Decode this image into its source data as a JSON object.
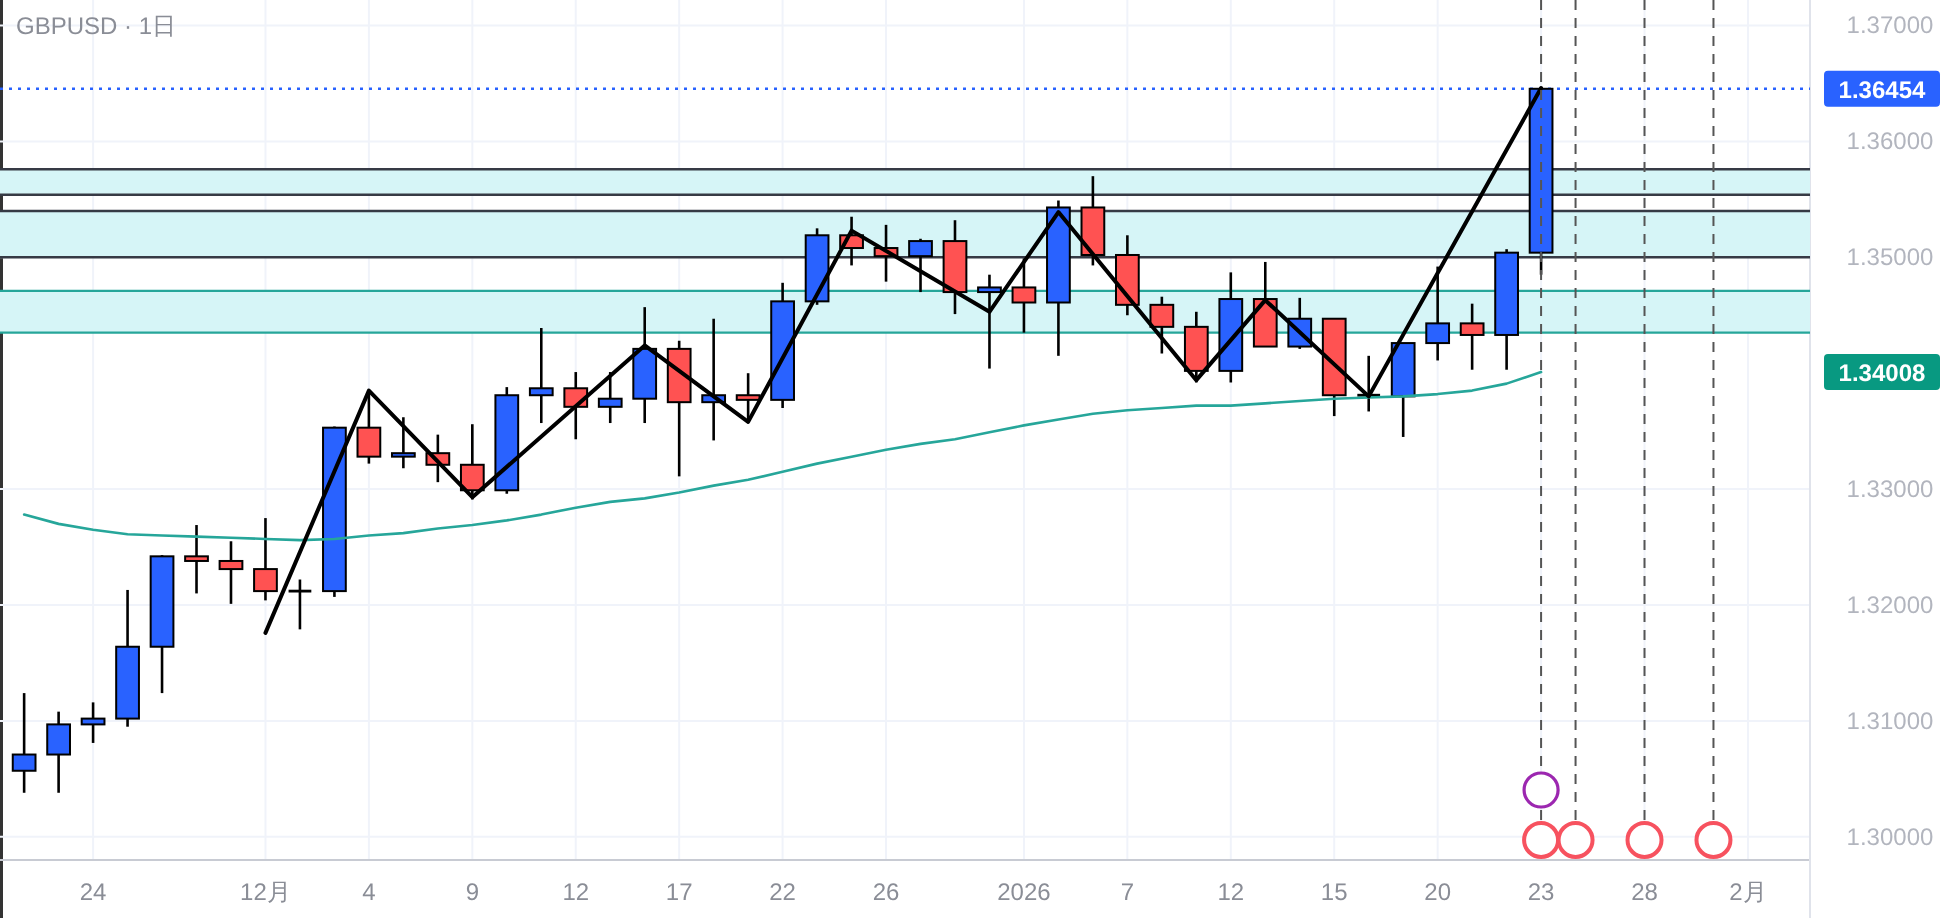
{
  "chart_data": {
    "type": "candlestick",
    "title": "GBPUSD · 1日",
    "categories": [
      null,
      null,
      "24",
      null,
      null,
      null,
      null,
      "12月",
      null,
      null,
      "4",
      null,
      null,
      "9",
      null,
      null,
      "12",
      null,
      null,
      "17",
      null,
      null,
      "22",
      null,
      null,
      "26",
      null,
      null,
      null,
      "2026",
      null,
      null,
      "7",
      null,
      null,
      "12",
      null,
      null,
      "15",
      null,
      null,
      "20",
      null,
      null,
      "23",
      null,
      null,
      "28",
      null,
      null,
      "2月"
    ],
    "ohlc": [
      [
        1.3057,
        1.3124,
        1.3038,
        1.3071
      ],
      [
        1.3071,
        1.3108,
        1.3038,
        1.3097
      ],
      [
        1.3097,
        1.3116,
        1.3081,
        1.3102
      ],
      [
        1.3102,
        1.3213,
        1.3095,
        1.3164
      ],
      [
        1.3164,
        1.3243,
        1.3124,
        1.3242
      ],
      [
        1.3242,
        1.3269,
        1.321,
        1.3238
      ],
      [
        1.3238,
        1.3255,
        1.3201,
        1.3231
      ],
      [
        1.3231,
        1.3275,
        1.3204,
        1.3212
      ],
      [
        1.3212,
        1.3222,
        1.3179,
        1.3212
      ],
      [
        1.3212,
        1.3354,
        1.3207,
        1.3353
      ],
      [
        1.3353,
        1.3385,
        1.3322,
        1.3328
      ],
      [
        1.3328,
        1.3362,
        1.3318,
        1.3331
      ],
      [
        1.3331,
        1.3347,
        1.3306,
        1.3321
      ],
      [
        1.3321,
        1.3356,
        1.3291,
        1.3299
      ],
      [
        1.3299,
        1.3388,
        1.3296,
        1.3381
      ],
      [
        1.3381,
        1.3439,
        1.3357,
        1.3387
      ],
      [
        1.3387,
        1.3401,
        1.3343,
        1.3371
      ],
      [
        1.3371,
        1.3401,
        1.3357,
        1.3378
      ],
      [
        1.3378,
        1.3457,
        1.3357,
        1.3421
      ],
      [
        1.3421,
        1.3428,
        1.3311,
        1.3375
      ],
      [
        1.3375,
        1.3447,
        1.3342,
        1.3381
      ],
      [
        1.3381,
        1.34,
        1.3358,
        1.3377
      ],
      [
        1.3377,
        1.3478,
        1.337,
        1.3462
      ],
      [
        1.3462,
        1.3525,
        1.3459,
        1.3519
      ],
      [
        1.3519,
        1.3535,
        1.3493,
        1.3508
      ],
      [
        1.3508,
        1.3528,
        1.3479,
        1.3501
      ],
      [
        1.3501,
        1.3516,
        1.347,
        1.3514
      ],
      [
        1.3514,
        1.3532,
        1.3451,
        1.347
      ],
      [
        1.347,
        1.3485,
        1.3404,
        1.3474
      ],
      [
        1.3474,
        1.3499,
        1.3435,
        1.3461
      ],
      [
        1.3461,
        1.3549,
        1.3415,
        1.3543
      ],
      [
        1.3543,
        1.357,
        1.3493,
        1.3502
      ],
      [
        1.3502,
        1.3519,
        1.345,
        1.3459
      ],
      [
        1.3459,
        1.3466,
        1.3417,
        1.344
      ],
      [
        1.344,
        1.3453,
        1.3392,
        1.3402
      ],
      [
        1.3402,
        1.3487,
        1.3392,
        1.3464
      ],
      [
        1.3464,
        1.3496,
        1.3423,
        1.3423
      ],
      [
        1.3423,
        1.3465,
        1.3421,
        1.3447
      ],
      [
        1.3447,
        1.3447,
        1.3363,
        1.3381
      ],
      [
        1.3381,
        1.3415,
        1.3367,
        1.338
      ],
      [
        1.338,
        1.3426,
        1.3345,
        1.3426
      ],
      [
        1.3426,
        1.3492,
        1.3411,
        1.3443
      ],
      [
        1.3443,
        1.346,
        1.3403,
        1.3433
      ],
      [
        1.3433,
        1.3507,
        1.3403,
        1.3504
      ],
      [
        1.3504,
        1.36454,
        1.3485,
        1.36454
      ],
      null,
      null,
      null,
      null,
      null,
      null
    ],
    "colors": [
      "#2962ff",
      "#2962ff",
      "#2962ff",
      "#2962ff",
      "#2962ff",
      "#ff5252",
      "#ff5252",
      "#ff5252",
      "#000000",
      "#2962ff",
      "#ff5252",
      "#2962ff",
      "#ff5252",
      "#ff5252",
      "#2962ff",
      "#2962ff",
      "#ff5252",
      "#2962ff",
      "#2962ff",
      "#ff5252",
      "#2962ff",
      "#ff5252",
      "#2962ff",
      "#2962ff",
      "#ff5252",
      "#ff5252",
      "#2962ff",
      "#ff5252",
      "#2962ff",
      "#ff5252",
      "#2962ff",
      "#ff5252",
      "#ff5252",
      "#ff5252",
      "#ff5252",
      "#2962ff",
      "#ff5252",
      "#2962ff",
      "#ff5252",
      "#000000",
      "#2962ff",
      "#2962ff",
      "#ff5252",
      "#2962ff",
      "#2962ff",
      null,
      null,
      null,
      null,
      null,
      null
    ],
    "series": [
      {
        "type": "line",
        "color": "#26a69a",
        "values": [
          1.3278,
          1.327,
          1.3265,
          1.3261,
          1.326,
          1.3259,
          1.3258,
          1.3257,
          1.3256,
          1.3257,
          1.326,
          1.3262,
          1.3266,
          1.3269,
          1.3273,
          1.3278,
          1.3284,
          1.3289,
          1.3292,
          1.3297,
          1.3303,
          1.3308,
          1.3315,
          1.3322,
          1.3328,
          1.3334,
          1.3339,
          1.3343,
          1.3349,
          1.3355,
          1.336,
          1.3365,
          1.3368,
          1.337,
          1.3372,
          1.3372,
          1.3374,
          1.3376,
          1.3378,
          1.3379,
          1.338,
          1.3382,
          1.3385,
          1.3391,
          1.3401,
          null,
          null,
          null,
          null,
          null,
          null
        ]
      },
      {
        "type": "line",
        "color": "#000000",
        "values": [
          null,
          null,
          null,
          null,
          null,
          null,
          null,
          1.3176,
          null,
          null,
          1.3385,
          null,
          null,
          1.3293,
          null,
          null,
          null,
          null,
          1.3424,
          null,
          null,
          1.3358,
          null,
          null,
          1.3523,
          null,
          null,
          null,
          1.3453,
          null,
          1.3539,
          null,
          null,
          null,
          1.3394,
          null,
          1.3463,
          null,
          null,
          1.338,
          null,
          null,
          null,
          null,
          1.3646,
          null,
          null,
          null,
          null,
          null,
          null
        ]
      }
    ],
    "ylim": [
      1.298,
      1.3722
    ],
    "grid": true,
    "yticks": [
      {
        "value": 1.3,
        "label": "1.30000"
      },
      {
        "value": 1.31,
        "label": "1.31000"
      },
      {
        "value": 1.32,
        "label": "1.32000"
      },
      {
        "value": 1.33,
        "label": "1.33000"
      },
      {
        "value": 1.35,
        "label": "1.35000"
      },
      {
        "value": 1.36,
        "label": "1.36000"
      },
      {
        "value": 1.37,
        "label": "1.37000"
      }
    ],
    "bands": [
      {
        "axis": "y",
        "from": 1.3554,
        "to": 1.3576,
        "color": "#d6f5f7"
      },
      {
        "axis": "y",
        "from": 1.35,
        "to": 1.354,
        "color": "#d6f5f7"
      },
      {
        "axis": "y",
        "from": 1.3435,
        "to": 1.3471,
        "color": "#d6f5f7"
      }
    ],
    "ref_lines": [
      {
        "axis": "y",
        "value": 1.3576,
        "color": "#363a45",
        "line_style": "solid"
      },
      {
        "axis": "y",
        "value": 1.3554,
        "color": "#363a45",
        "line_style": "solid"
      },
      {
        "axis": "y",
        "value": 1.354,
        "color": "#363a45",
        "line_style": "solid"
      },
      {
        "axis": "y",
        "value": 1.35,
        "color": "#363a45",
        "line_style": "solid"
      },
      {
        "axis": "y",
        "value": 1.3471,
        "color": "#26a69a",
        "line_style": "solid"
      },
      {
        "axis": "y",
        "value": 1.3435,
        "color": "#26a69a",
        "line_style": "solid"
      },
      {
        "axis": "y",
        "value": 1.36454,
        "label": "1.36454",
        "color": "#2962ff",
        "line_style": "dotted"
      }
    ],
    "annotations": [
      "1.34008"
    ]
  }
}
